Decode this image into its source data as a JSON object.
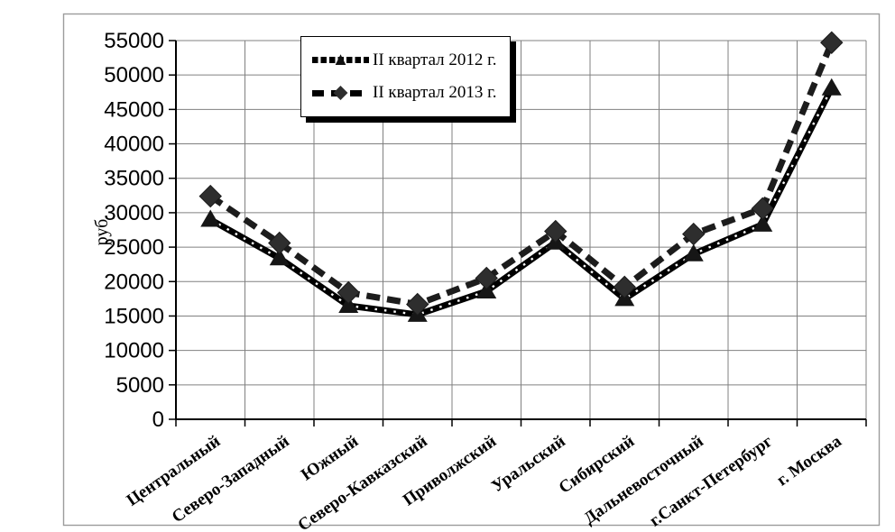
{
  "chart_data": {
    "type": "line",
    "title": "",
    "ylabel": "руб.",
    "xlabel": "",
    "ylim": [
      0,
      55000
    ],
    "ytick_step": 5000,
    "grid": "both",
    "legend_position": "top-center-inside",
    "categories": [
      "Центральный",
      "Северо-Западный",
      "Южный",
      "Северо-Кавказский",
      "Приволжский",
      "Уральский",
      "Сибирский",
      "Дальневосточный",
      "г.Санкт-Петербург",
      "г. Москва"
    ],
    "series": [
      {
        "name": "II квартал 2012 г.",
        "marker": "triangle",
        "line_style": "thick-dotted",
        "color": "#000000",
        "values": [
          29000,
          23400,
          16500,
          15200,
          18600,
          25700,
          17500,
          24000,
          28300,
          48100
        ]
      },
      {
        "name": "II квартал 2013 г.",
        "marker": "diamond",
        "line_style": "thick-dashed",
        "color": "#1c1c1c",
        "values": [
          32400,
          25600,
          18400,
          16700,
          20500,
          27300,
          19200,
          26900,
          30600,
          54700
        ]
      }
    ]
  },
  "icons": {
    "triangle_marker": "▲",
    "diamond_marker": "◆"
  },
  "colors": {
    "background": "#ffffff",
    "frame": "#9c9c9c",
    "grid": "#808080",
    "axis": "#000000",
    "marker_2012": "#161616",
    "marker_2013": "#2e2e2e",
    "legend_shadow": "#000000"
  }
}
